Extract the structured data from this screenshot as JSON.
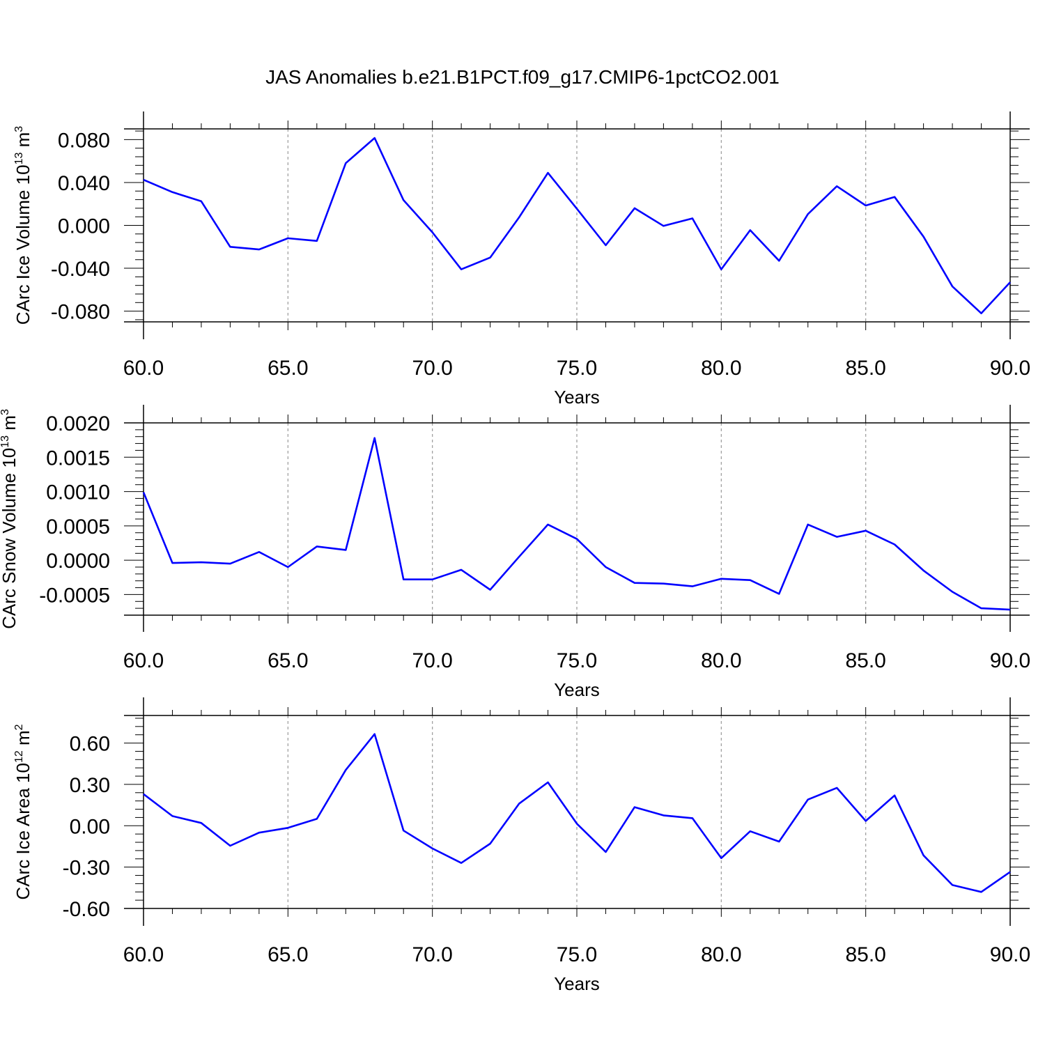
{
  "title": "JAS Anomalies b.e21.B1PCT.f09_g17.CMIP6-1pctCO2.001",
  "line_color": "#0000ff",
  "chart_data": [
    {
      "type": "line",
      "ylabel": {
        "text": "CArc Ice Volume 10",
        "sup": "13",
        "unit": " m",
        "unit_sup": "3"
      },
      "xlabel": "Years",
      "xlim": [
        60,
        90
      ],
      "ylim": [
        -0.09,
        0.09
      ],
      "xticks": [
        60,
        65,
        70,
        75,
        80,
        85,
        90
      ],
      "xtick_labels": [
        "60.0",
        "65.0",
        "70.0",
        "75.0",
        "80.0",
        "85.0",
        "90.0"
      ],
      "yticks": [
        0.08,
        0.04,
        0.0,
        -0.04,
        -0.08
      ],
      "ytick_labels": [
        "0.080",
        "0.040",
        "0.000",
        "-0.040",
        "-0.080"
      ],
      "grid": "vertical dashed at major x ticks",
      "series": [
        {
          "x": [
            60,
            61,
            62,
            63,
            64,
            65,
            66,
            67,
            68,
            69,
            70,
            71,
            72,
            73,
            74,
            75,
            76,
            77,
            78,
            79,
            80,
            81,
            82,
            83,
            84,
            85,
            86,
            87,
            88,
            89,
            90
          ],
          "y": [
            0.0425,
            0.031,
            0.0225,
            -0.02,
            -0.0225,
            -0.012,
            -0.0145,
            0.058,
            0.0815,
            0.0235,
            -0.0065,
            -0.041,
            -0.03,
            0.0075,
            0.049,
            0.0155,
            -0.0185,
            0.016,
            -0.0005,
            0.0065,
            -0.041,
            -0.0045,
            -0.033,
            0.0105,
            0.0365,
            0.0185,
            0.0265,
            -0.0105,
            -0.057,
            -0.082,
            -0.053
          ]
        }
      ]
    },
    {
      "type": "line",
      "ylabel": {
        "text": "CArc Snow Volume 10",
        "sup": "13",
        "unit": " m",
        "unit_sup": "3"
      },
      "xlabel": "Years",
      "xlim": [
        60,
        90
      ],
      "ylim": [
        -0.0008,
        0.002
      ],
      "xticks": [
        60,
        65,
        70,
        75,
        80,
        85,
        90
      ],
      "xtick_labels": [
        "60.0",
        "65.0",
        "70.0",
        "75.0",
        "80.0",
        "85.0",
        "90.0"
      ],
      "yticks": [
        0.002,
        0.0015,
        0.001,
        0.0005,
        0.0,
        -0.0005
      ],
      "ytick_labels": [
        "0.0020",
        "0.0015",
        "0.0010",
        "0.0005",
        "0.0000",
        "-0.0005"
      ],
      "grid": "vertical dashed at major x ticks",
      "series": [
        {
          "x": [
            60,
            61,
            62,
            63,
            64,
            65,
            66,
            67,
            68,
            69,
            70,
            71,
            72,
            73,
            74,
            75,
            76,
            77,
            78,
            79,
            80,
            81,
            82,
            83,
            84,
            85,
            86,
            87,
            88,
            89,
            90
          ],
          "y": [
            0.00099,
            -4e-05,
            -3e-05,
            -5e-05,
            0.00012,
            -0.0001,
            0.0002,
            0.00015,
            0.00178,
            -0.00028,
            -0.00028,
            -0.00014,
            -0.00043,
            5e-05,
            0.00052,
            0.00031,
            -0.0001,
            -0.00033,
            -0.00034,
            -0.00038,
            -0.00027,
            -0.00029,
            -0.00049,
            0.00052,
            0.00034,
            0.00043,
            0.00023,
            -0.00015,
            -0.00046,
            -0.0007,
            -0.00072
          ]
        }
      ]
    },
    {
      "type": "line",
      "ylabel": {
        "text": "CArc Ice Area 10",
        "sup": "12",
        "unit": " m",
        "unit_sup": "2"
      },
      "xlabel": "Years",
      "xlim": [
        60,
        90
      ],
      "ylim": [
        -0.6,
        0.8
      ],
      "xticks": [
        60,
        65,
        70,
        75,
        80,
        85,
        90
      ],
      "xtick_labels": [
        "60.0",
        "65.0",
        "70.0",
        "75.0",
        "80.0",
        "85.0",
        "90.0"
      ],
      "yticks": [
        0.6,
        0.3,
        0.0,
        -0.3,
        -0.6
      ],
      "ytick_labels": [
        "0.60",
        "0.30",
        "0.00",
        "-0.30",
        "-0.60"
      ],
      "grid": "vertical dashed at major x ticks",
      "series": [
        {
          "x": [
            60,
            61,
            62,
            63,
            64,
            65,
            66,
            67,
            68,
            69,
            70,
            71,
            72,
            73,
            74,
            75,
            76,
            77,
            78,
            79,
            80,
            81,
            82,
            83,
            84,
            85,
            86,
            87,
            88,
            89,
            90
          ],
          "y": [
            0.23,
            0.07,
            0.02,
            -0.145,
            -0.05,
            -0.015,
            0.05,
            0.405,
            0.665,
            -0.035,
            -0.165,
            -0.27,
            -0.13,
            0.16,
            0.315,
            0.015,
            -0.19,
            0.135,
            0.075,
            0.055,
            -0.235,
            -0.04,
            -0.115,
            0.19,
            0.275,
            0.035,
            0.22,
            -0.215,
            -0.43,
            -0.48,
            -0.335
          ]
        }
      ]
    }
  ]
}
